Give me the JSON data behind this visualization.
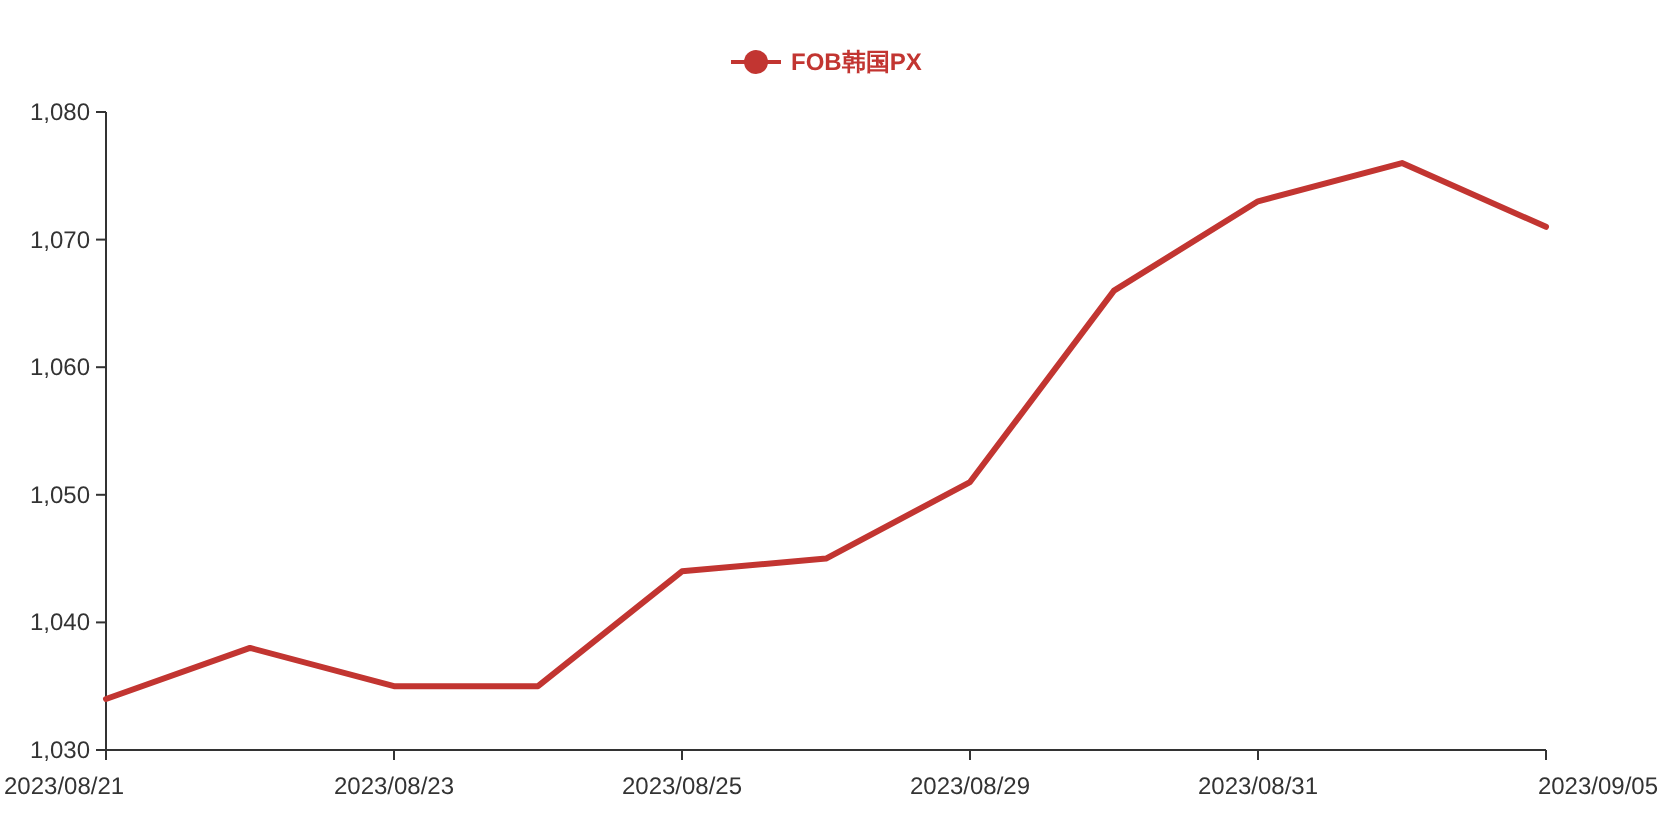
{
  "chart_data": {
    "type": "line",
    "categories": [
      "2023/08/21",
      null,
      "2023/08/23",
      null,
      "2023/08/25",
      null,
      "2023/08/29",
      null,
      "2023/08/31",
      null,
      "2023/09/05"
    ],
    "series": [
      {
        "name": "FOB韩国PX",
        "color": "#c23531",
        "values": [
          1034,
          1038,
          1035,
          1035,
          1044,
          1045,
          1051,
          1066,
          1073,
          1076,
          1071
        ]
      }
    ],
    "ylim": [
      1030,
      1080
    ],
    "yticks": [
      {
        "value": 1030,
        "label": "1,030"
      },
      {
        "value": 1040,
        "label": "1,040"
      },
      {
        "value": 1050,
        "label": "1,050"
      },
      {
        "value": 1060,
        "label": "1,060"
      },
      {
        "value": 1070,
        "label": "1,070"
      },
      {
        "value": 1080,
        "label": "1,080"
      }
    ],
    "legend": "top",
    "marker": "none"
  }
}
